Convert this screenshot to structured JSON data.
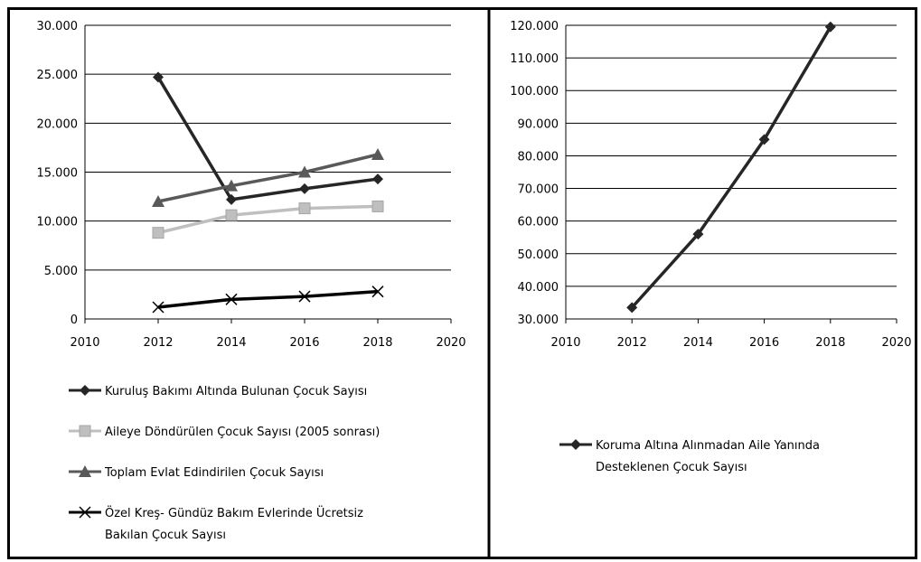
{
  "chart_data": [
    {
      "type": "scatter",
      "xlim": [
        2010,
        2020
      ],
      "ylim": [
        0,
        30000
      ],
      "x_ticks": [
        "2010",
        "2012",
        "2014",
        "2016",
        "2018",
        "2020"
      ],
      "y_ticks": [
        "0",
        "5.000",
        "10.000",
        "15.000",
        "20.000",
        "25.000",
        "30.000"
      ],
      "grid": "horizontal",
      "legend_position": "bottom",
      "x": [
        2012,
        2014,
        2016,
        2018
      ],
      "series": [
        {
          "name": "Kuruluş Bakımı Altında Bulunan Çocuk Sayısı",
          "values": [
            24700,
            12200,
            13300,
            14300
          ],
          "color": "#262626",
          "marker": "diamond"
        },
        {
          "name": "Aileye Döndürülen Çocuk Sayısı (2005 sonrası)",
          "values": [
            8800,
            10600,
            11300,
            11500
          ],
          "color": "#bfbfbf",
          "marker": "square"
        },
        {
          "name": "Toplam Evlat Edindirilen Çocuk Sayısı",
          "values": [
            12000,
            13600,
            15000,
            16800
          ],
          "color": "#595959",
          "marker": "triangle"
        },
        {
          "name": "Özel Kreş- Gündüz Bakım Evlerinde Ücretsiz Bakılan Çocuk Sayısı",
          "name_lines": [
            "Özel Kreş- Gündüz Bakım Evlerinde Ücretsiz",
            "Bakılan Çocuk Sayısı"
          ],
          "values": [
            1200,
            2000,
            2300,
            2800
          ],
          "color": "#000000",
          "marker": "x"
        }
      ]
    },
    {
      "type": "scatter",
      "xlim": [
        2010,
        2020
      ],
      "ylim": [
        30000,
        120000
      ],
      "x_ticks": [
        "2010",
        "2012",
        "2014",
        "2016",
        "2018",
        "2020"
      ],
      "y_ticks": [
        "30.000",
        "40.000",
        "50.000",
        "60.000",
        "70.000",
        "80.000",
        "90.000",
        "100.000",
        "110.000",
        "120.000"
      ],
      "grid": "horizontal",
      "legend_position": "bottom",
      "x": [
        2012,
        2014,
        2016,
        2018
      ],
      "series": [
        {
          "name": "Koruma Altına Alınmadan Aile Yanında Desteklenen Çocuk Sayısı",
          "name_lines": [
            "Koruma Altına Alınmadan Aile Yanında",
            "Desteklenen Çocuk Sayısı"
          ],
          "values": [
            33500,
            56000,
            85000,
            119500
          ],
          "color": "#262626",
          "marker": "diamond"
        }
      ]
    }
  ]
}
